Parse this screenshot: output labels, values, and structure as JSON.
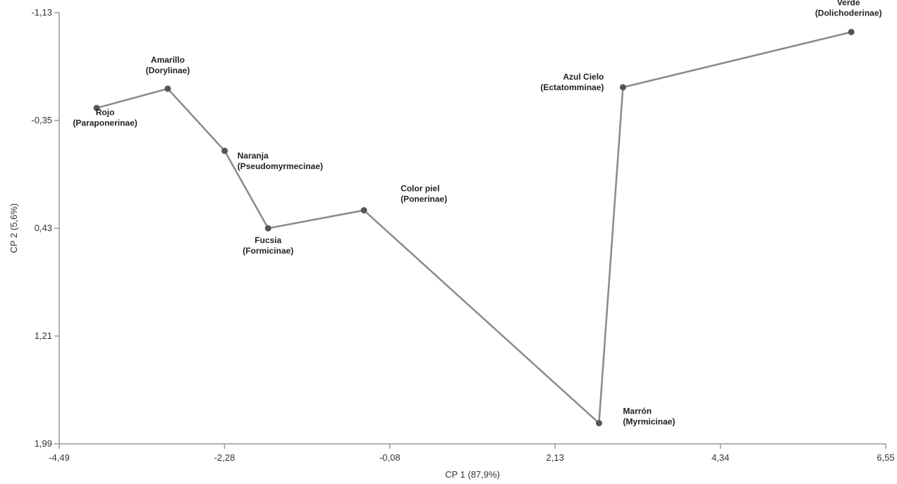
{
  "chart_data": {
    "type": "line",
    "xlabel": "CP 1 (87,9%)",
    "ylabel": "CP 2 (5,6%)",
    "xlim": [
      -4.49,
      6.55
    ],
    "ylim": [
      -1.13,
      1.99
    ],
    "y_axis_inverted": true,
    "x_ticks": [
      "-4,49",
      "-2,28",
      "-0,08",
      "2,13",
      "4,34",
      "6,55"
    ],
    "y_ticks": [
      "-1,13",
      "-0,35",
      "0,43",
      "1,21",
      "1,99"
    ],
    "grid": false,
    "legend": "none",
    "line_color": "#8a8a8a",
    "marker_color": "#555555",
    "points": [
      {
        "line1": "Rojo",
        "line2": "(Paraponerinae)",
        "x": -3.99,
        "y": -0.44
      },
      {
        "line1": "Amarillo",
        "line2": "(Dorylinae)",
        "x": -3.04,
        "y": -0.58
      },
      {
        "line1": "Naranja",
        "line2": "(Pseudomyrmecinae)",
        "x": -2.28,
        "y": -0.13
      },
      {
        "line1": "Fucsia",
        "line2": "(Formicinae)",
        "x": -1.7,
        "y": 0.43
      },
      {
        "line1": "Color piel",
        "line2": "(Ponerinae)",
        "x": -0.42,
        "y": 0.3
      },
      {
        "line1": "Marrón",
        "line2": "(Myrmicinae)",
        "x": 2.72,
        "y": 1.84
      },
      {
        "line1": "Azul Cielo",
        "line2": "(Ectatomminae)",
        "x": 3.04,
        "y": -0.59
      },
      {
        "line1": "Verde",
        "line2": "(Dolichoderinae)",
        "x": 6.09,
        "y": -0.99
      }
    ]
  }
}
